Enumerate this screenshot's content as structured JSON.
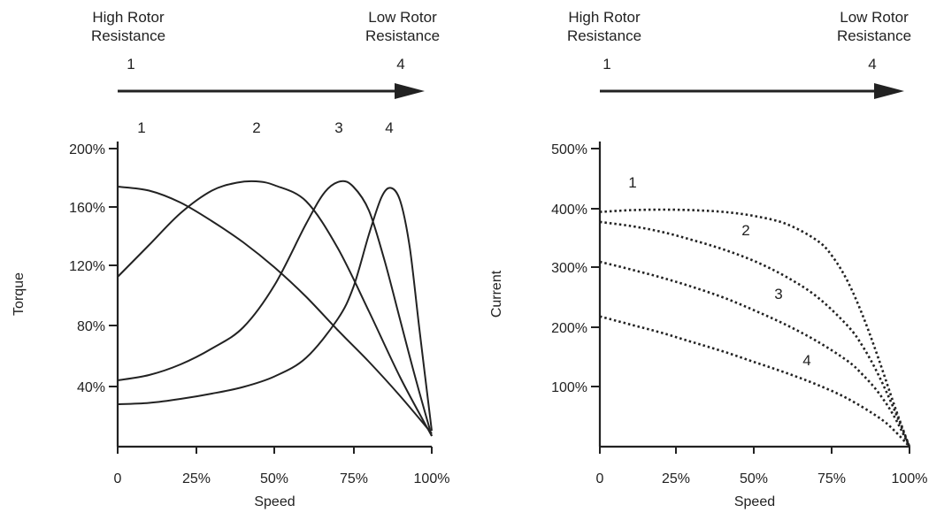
{
  "chart_data": [
    {
      "type": "line",
      "xlabel": "Speed",
      "ylabel": "Torque",
      "x_ticks": [
        "0",
        "25%",
        "50%",
        "75%",
        "100%"
      ],
      "y_ticks": [
        "40%",
        "80%",
        "120%",
        "160%",
        "200%"
      ],
      "xlim": [
        0,
        100
      ],
      "ylim": [
        0,
        230
      ],
      "grid": false,
      "arrow": {
        "start_label": "High Rotor\nResistance",
        "start_number": "1",
        "end_label": "Low Rotor\nResistance",
        "end_number": "4"
      },
      "series": [
        {
          "name": "1",
          "x": [
            0,
            10,
            20,
            30,
            40,
            50,
            60,
            70,
            80,
            90,
            100
          ],
          "y": [
            196,
            193,
            184,
            170,
            154,
            135,
            113,
            88,
            64,
            38,
            10
          ]
        },
        {
          "name": "2",
          "x": [
            0,
            10,
            20,
            30,
            38,
            44,
            50,
            60,
            70,
            80,
            90,
            100
          ],
          "y": [
            128,
            152,
            176,
            193,
            199,
            200,
            197,
            185,
            150,
            102,
            52,
            8
          ]
        },
        {
          "name": "3",
          "x": [
            0,
            10,
            20,
            30,
            40,
            50,
            60,
            66,
            71,
            75,
            80,
            85,
            90,
            95,
            100
          ],
          "y": [
            50,
            54,
            62,
            74,
            90,
            122,
            168,
            192,
            200,
            196,
            178,
            140,
            95,
            50,
            8
          ]
        },
        {
          "name": "4",
          "x": [
            0,
            10,
            20,
            30,
            40,
            50,
            60,
            70,
            75,
            80,
            84,
            87,
            90,
            93,
            96,
            100
          ],
          "y": [
            32,
            33,
            36,
            40,
            45,
            53,
            67,
            96,
            120,
            160,
            188,
            195,
            185,
            150,
            90,
            12
          ]
        }
      ],
      "series_labels": [
        "1",
        "2",
        "3",
        "4"
      ]
    },
    {
      "type": "line",
      "xlabel": "Speed",
      "ylabel": "Current",
      "x_ticks": [
        "0",
        "25%",
        "50%",
        "75%",
        "100%"
      ],
      "y_ticks": [
        "100%",
        "200%",
        "300%",
        "400%",
        "500%"
      ],
      "xlim": [
        0,
        100
      ],
      "ylim": [
        0,
        520
      ],
      "grid": false,
      "arrow": {
        "start_label": "High Rotor\nResistance",
        "start_number": "1",
        "end_label": "Low Rotor\nResistance",
        "end_number": "4"
      },
      "series": [
        {
          "name": "1",
          "x": [
            0,
            10,
            20,
            30,
            40,
            50,
            60,
            70,
            75,
            80,
            85,
            90,
            95,
            98,
            100
          ],
          "y": [
            400,
            403,
            404,
            403,
            400,
            393,
            380,
            352,
            325,
            282,
            222,
            150,
            72,
            28,
            0
          ]
        },
        {
          "name": "2",
          "x": [
            0,
            10,
            20,
            30,
            40,
            50,
            60,
            70,
            80,
            85,
            90,
            95,
            100
          ],
          "y": [
            383,
            376,
            366,
            352,
            336,
            316,
            290,
            256,
            206,
            170,
            122,
            64,
            0
          ]
        },
        {
          "name": "3",
          "x": [
            0,
            10,
            20,
            30,
            40,
            50,
            60,
            70,
            80,
            85,
            90,
            95,
            100
          ],
          "y": [
            315,
            302,
            288,
            272,
            254,
            232,
            208,
            180,
            146,
            122,
            92,
            52,
            0
          ]
        },
        {
          "name": "4",
          "x": [
            0,
            10,
            20,
            30,
            40,
            50,
            60,
            70,
            80,
            90,
            95,
            100
          ],
          "y": [
            222,
            208,
            194,
            178,
            162,
            144,
            126,
            106,
            82,
            50,
            28,
            0
          ]
        }
      ],
      "series_labels": [
        "1",
        "2",
        "3",
        "4"
      ]
    }
  ]
}
